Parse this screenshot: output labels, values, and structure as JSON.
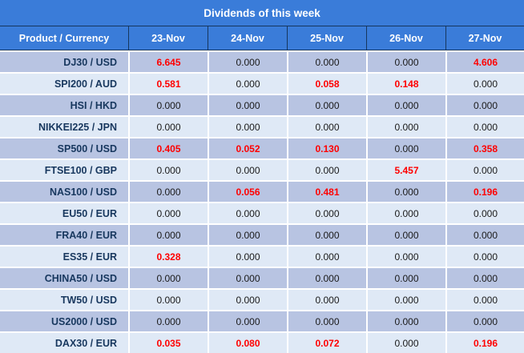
{
  "title": "Dividends of this week",
  "colors": {
    "header_blue": "#3A7CD9",
    "header_border_navy": "#17375E",
    "row_dark": "#B8C4E2",
    "row_light": "#DFE9F6",
    "value_text": "#1A1A1A",
    "product_text": "#17375E",
    "nonzero_value_red": "#FF0000",
    "grid_white": "#FFFFFF",
    "header_text": "#FFFFFF"
  },
  "chart_data": {
    "type": "table",
    "title": "Dividends of this week",
    "columns": [
      "Product / Currency",
      "23-Nov",
      "24-Nov",
      "25-Nov",
      "26-Nov",
      "27-Nov"
    ],
    "rows": [
      {
        "product": "DJ30 / USD",
        "values": [
          "6.645",
          "0.000",
          "0.000",
          "0.000",
          "4.606"
        ]
      },
      {
        "product": "SPI200 / AUD",
        "values": [
          "0.581",
          "0.000",
          "0.058",
          "0.148",
          "0.000"
        ]
      },
      {
        "product": "HSI / HKD",
        "values": [
          "0.000",
          "0.000",
          "0.000",
          "0.000",
          "0.000"
        ]
      },
      {
        "product": "NIKKEI225 / JPN",
        "values": [
          "0.000",
          "0.000",
          "0.000",
          "0.000",
          "0.000"
        ]
      },
      {
        "product": "SP500 / USD",
        "values": [
          "0.405",
          "0.052",
          "0.130",
          "0.000",
          "0.358"
        ]
      },
      {
        "product": "FTSE100 / GBP",
        "values": [
          "0.000",
          "0.000",
          "0.000",
          "5.457",
          "0.000"
        ]
      },
      {
        "product": "NAS100 / USD",
        "values": [
          "0.000",
          "0.056",
          "0.481",
          "0.000",
          "0.196"
        ]
      },
      {
        "product": "EU50 / EUR",
        "values": [
          "0.000",
          "0.000",
          "0.000",
          "0.000",
          "0.000"
        ]
      },
      {
        "product": "FRA40 / EUR",
        "values": [
          "0.000",
          "0.000",
          "0.000",
          "0.000",
          "0.000"
        ]
      },
      {
        "product": "ES35 / EUR",
        "values": [
          "0.328",
          "0.000",
          "0.000",
          "0.000",
          "0.000"
        ]
      },
      {
        "product": "CHINA50 / USD",
        "values": [
          "0.000",
          "0.000",
          "0.000",
          "0.000",
          "0.000"
        ]
      },
      {
        "product": "TW50 / USD",
        "values": [
          "0.000",
          "0.000",
          "0.000",
          "0.000",
          "0.000"
        ]
      },
      {
        "product": "US2000 / USD",
        "values": [
          "0.000",
          "0.000",
          "0.000",
          "0.000",
          "0.000"
        ]
      },
      {
        "product": "DAX30 / EUR",
        "values": [
          "0.035",
          "0.080",
          "0.072",
          "0.000",
          "0.196"
        ]
      }
    ],
    "style_rule": "non-zero dividend values rendered red bold; zero values dark regular",
    "row_striping": "rows alternate dark periwinkle / light blue starting dark"
  }
}
